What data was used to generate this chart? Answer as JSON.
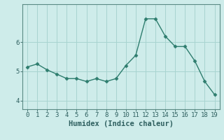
{
  "x": [
    0,
    1,
    2,
    3,
    4,
    5,
    6,
    7,
    8,
    9,
    10,
    11,
    12,
    13,
    14,
    15,
    16,
    17,
    18,
    19
  ],
  "y": [
    5.15,
    5.25,
    5.05,
    4.9,
    4.75,
    4.75,
    4.65,
    4.75,
    4.65,
    4.75,
    5.2,
    5.55,
    6.8,
    6.8,
    6.2,
    5.85,
    5.85,
    5.35,
    4.65,
    4.2
  ],
  "line_color": "#2e7d6e",
  "marker": "D",
  "marker_size": 2.5,
  "bg_color": "#ceecea",
  "grid_color": "#a8d4d0",
  "axis_bg_color": "#ceecea",
  "spine_color": "#5a8a84",
  "xlabel": "Humidex (Indice chaleur)",
  "ylim": [
    3.7,
    7.3
  ],
  "xlim": [
    -0.5,
    19.5
  ],
  "yticks": [
    4,
    5,
    6
  ],
  "xticks": [
    0,
    1,
    2,
    3,
    4,
    5,
    6,
    7,
    8,
    9,
    10,
    11,
    12,
    13,
    14,
    15,
    16,
    17,
    18,
    19
  ],
  "font_color": "#2e5f5f",
  "xlabel_fontsize": 7.5,
  "tick_fontsize": 6.5,
  "linewidth": 1.0
}
